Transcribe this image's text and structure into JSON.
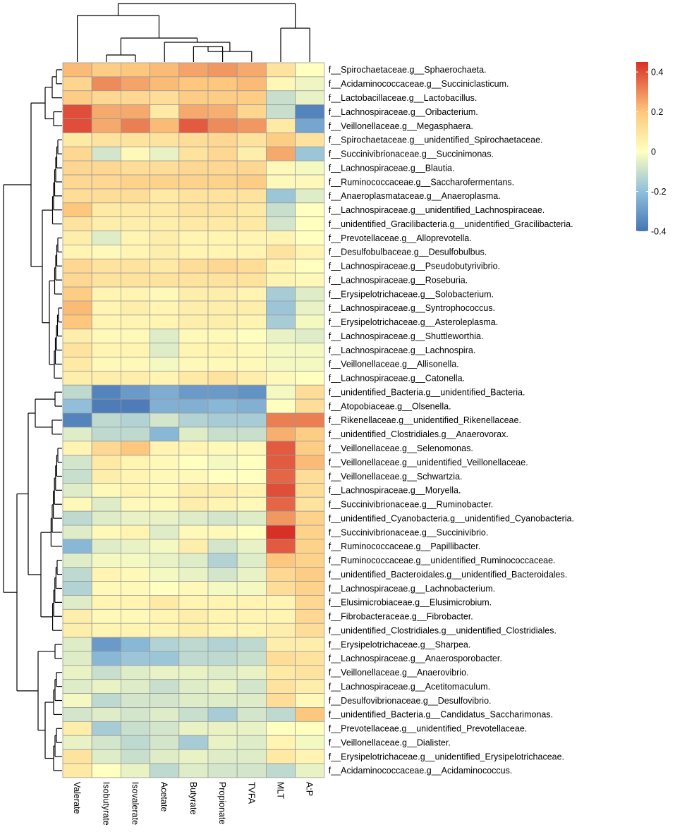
{
  "chart_data": {
    "type": "heatmap",
    "title": "",
    "color_scale": {
      "min": -0.4,
      "max": 0.45,
      "stops": [
        {
          "value": -0.4,
          "color": "#4575b4"
        },
        {
          "value": -0.2,
          "color": "#91bfdb"
        },
        {
          "value": 0,
          "color": "#ffffbf"
        },
        {
          "value": 0.2,
          "color": "#fdc77e"
        },
        {
          "value": 0.45,
          "color": "#d73027"
        }
      ],
      "legend_ticks": [
        {
          "value": 0.4,
          "label": "0.4"
        },
        {
          "value": 0.2,
          "label": "0.2"
        },
        {
          "value": 0,
          "label": "0"
        },
        {
          "value": -0.2,
          "label": "-0.2"
        },
        {
          "value": -0.4,
          "label": "-0.4"
        }
      ]
    },
    "columns": [
      "Valerate",
      "Isobutyrate",
      "Isovalerate",
      "Acetate",
      "Butyrate",
      "Propionate",
      "TVFA",
      "MLT",
      "A:P"
    ],
    "rows": [
      "f__Spirochaetaceae.g__Sphaerochaeta.",
      "f__Acidaminococcaceae.g__Succiniclasticum.",
      "f__Lactobacillaceae.g__Lactobacillus.",
      "f__Lachnospiraceae.g__Oribacterium.",
      "f__Veillonellaceae.g__Megasphaera.",
      "f__Spirochaetaceae.g__unidentified_Spirochaetaceae.",
      "f__Succinivibrionaceae.g__Succinimonas.",
      "f__Lachnospiraceae.g__Blautia.",
      "f__Ruminococcaceae.g__Saccharofermentans.",
      "f__Anaeroplasmataceae.g__Anaeroplasma.",
      "f__Lachnospiraceae.g__unidentified_Lachnospiraceae.",
      "f__unidentified_Gracilibacteria.g__unidentified_Gracilibacteria.",
      "f__Prevotellaceae.g__Alloprevotella.",
      "f__Desulfobulbaceae.g__Desulfobulbus.",
      "f__Lachnospiraceae.g__Pseudobutyrivibrio.",
      "f__Lachnospiraceae.g__Roseburia.",
      "f__Erysipelotrichaceae.g__Solobacterium.",
      "f__Lachnospiraceae.g__Syntrophococcus.",
      "f__Erysipelotrichaceae.g__Asteroleplasma.",
      "f__Lachnospiraceae.g__Shuttleworthia.",
      "f__Lachnospiraceae.g__Lachnospira.",
      "f__Veillonellaceae.g__Allisonella.",
      "f__Lachnospiraceae.g__Catonella.",
      "f__unidentified_Bacteria.g__unidentified_Bacteria.",
      "f__Atopobiaceae.g__Olsenella.",
      "f__Rikenellaceae.g__unidentified_Rikenellaceae.",
      "f__unidentified_Clostridiales.g__Anaerovorax.",
      "f__Veillonellaceae.g__Selenomonas.",
      "f__Veillonellaceae.g__unidentified_Veillonellaceae.",
      "f__Veillonellaceae.g__Schwartzia.",
      "f__Lachnospiraceae.g__Moryella.",
      "f__Succinivibrionaceae.g__Ruminobacter.",
      "f__unidentified_Cyanobacteria.g__unidentified_Cyanobacteria.",
      "f__Succinivibrionaceae.g__Succinivibrio.",
      "f__Ruminococcaceae.g__Papillibacter.",
      "f__Ruminococcaceae.g__unidentified_Ruminococcaceae.",
      "f__unidentified_Bacteroidales.g__unidentified_Bacteroidales.",
      "f__Lachnospiraceae.g__Lachnobacterium.",
      "f__Elusimicrobiaceae.g__Elusimicrobium.",
      "f__Fibrobacteraceae.g__Fibrobacter.",
      "f__unidentified_Clostridiales.g__unidentified_Clostridiales.",
      "f__Erysipelotrichaceae.g__Sharpea.",
      "f__Lachnospiraceae.g__Anaerosporobacter.",
      "f__Veillonellaceae.g__Anaerovibrio.",
      "f__Lachnospiraceae.g__Acetitomaculum.",
      "f__Desulfovibrionaceae.g__Desulfovibrio.",
      "f__unidentified_Bacteria.g__Candidatus_Saccharimonas.",
      "f__Prevotellaceae.g__unidentified_Prevotellaceae.",
      "f__Veillonellaceae.g__Dialister.",
      "f__Erysipelotrichaceae.g__unidentified_Erysipelotrichaceae.",
      "f__Acidaminococcaceae.g__Acidaminococcus."
    ],
    "values": [
      [
        0.22,
        0.18,
        0.2,
        0.22,
        0.26,
        0.28,
        0.25,
        0.1,
        0.0
      ],
      [
        0.15,
        0.3,
        0.26,
        0.22,
        0.2,
        0.2,
        0.22,
        0.03,
        -0.03
      ],
      [
        0.18,
        0.14,
        0.14,
        0.12,
        0.18,
        0.18,
        0.18,
        -0.1,
        -0.04
      ],
      [
        0.4,
        0.25,
        0.25,
        0.08,
        0.25,
        0.24,
        0.15,
        -0.1,
        -0.36
      ],
      [
        0.4,
        0.25,
        0.32,
        0.22,
        0.38,
        0.3,
        0.28,
        0.08,
        -0.27
      ],
      [
        0.08,
        0.1,
        0.1,
        0.1,
        0.12,
        0.14,
        0.1,
        0.18,
        0.1
      ],
      [
        0.14,
        -0.08,
        0.02,
        -0.04,
        0.1,
        0.14,
        0.06,
        0.25,
        -0.18
      ],
      [
        0.14,
        0.14,
        0.12,
        0.12,
        0.14,
        0.14,
        0.14,
        0.02,
        -0.02
      ],
      [
        0.14,
        0.14,
        0.16,
        0.16,
        0.16,
        0.16,
        0.18,
        0.02,
        0.02
      ],
      [
        0.12,
        0.12,
        0.12,
        0.08,
        0.1,
        0.1,
        0.1,
        -0.18,
        -0.06
      ],
      [
        0.2,
        0.08,
        0.08,
        0.08,
        0.1,
        0.1,
        0.08,
        -0.1,
        0.0
      ],
      [
        0.1,
        0.06,
        0.06,
        0.06,
        0.08,
        0.08,
        0.08,
        -0.08,
        0.0
      ],
      [
        0.06,
        -0.06,
        0.04,
        0.06,
        0.04,
        0.04,
        0.04,
        0.04,
        0.0
      ],
      [
        0.04,
        0.02,
        0.04,
        0.06,
        0.04,
        0.04,
        0.04,
        0.1,
        0.04
      ],
      [
        0.14,
        0.1,
        0.1,
        0.08,
        0.12,
        0.14,
        0.12,
        0.04,
        0.0
      ],
      [
        0.14,
        0.1,
        0.1,
        0.1,
        0.1,
        0.1,
        0.1,
        0.04,
        0.02
      ],
      [
        0.18,
        0.04,
        0.04,
        0.02,
        0.06,
        0.06,
        0.04,
        -0.16,
        -0.06
      ],
      [
        0.22,
        0.04,
        0.06,
        0.04,
        0.06,
        0.06,
        0.06,
        -0.18,
        -0.04
      ],
      [
        0.2,
        0.04,
        0.04,
        0.04,
        0.06,
        0.06,
        0.04,
        -0.16,
        -0.02
      ],
      [
        0.06,
        0.02,
        0.02,
        -0.06,
        0.02,
        0.02,
        0.0,
        -0.04,
        -0.06
      ],
      [
        0.1,
        0.04,
        0.04,
        -0.06,
        0.04,
        0.04,
        0.02,
        -0.02,
        -0.02
      ],
      [
        0.08,
        0.02,
        0.02,
        -0.02,
        0.02,
        0.02,
        0.02,
        -0.02,
        -0.02
      ],
      [
        0.06,
        0.06,
        0.06,
        0.04,
        0.08,
        0.1,
        0.06,
        0.02,
        0.0
      ],
      [
        -0.12,
        -0.36,
        -0.3,
        -0.25,
        -0.3,
        -0.3,
        -0.32,
        -0.02,
        0.12
      ],
      [
        -0.2,
        -0.38,
        -0.38,
        -0.24,
        -0.24,
        -0.22,
        -0.24,
        0.0,
        0.12
      ],
      [
        -0.36,
        -0.12,
        -0.14,
        -0.08,
        -0.14,
        -0.16,
        -0.16,
        0.32,
        0.32
      ],
      [
        -0.06,
        -0.12,
        -0.12,
        -0.22,
        -0.06,
        -0.1,
        -0.1,
        0.24,
        0.18
      ],
      [
        0.04,
        0.14,
        0.2,
        0.04,
        0.04,
        0.02,
        0.02,
        0.38,
        0.18
      ],
      [
        -0.08,
        0.08,
        0.04,
        0.02,
        0.0,
        -0.02,
        0.0,
        0.38,
        0.22
      ],
      [
        -0.1,
        0.06,
        0.04,
        0.02,
        0.02,
        0.0,
        0.0,
        0.36,
        0.12
      ],
      [
        -0.06,
        0.02,
        0.04,
        0.02,
        0.06,
        0.06,
        0.04,
        0.4,
        0.12
      ],
      [
        0.02,
        -0.06,
        0.02,
        0.02,
        0.06,
        0.04,
        0.02,
        0.36,
        0.1
      ],
      [
        -0.12,
        -0.06,
        -0.04,
        -0.04,
        -0.06,
        -0.08,
        -0.06,
        0.28,
        0.16
      ],
      [
        -0.06,
        0.02,
        0.04,
        -0.06,
        0.02,
        0.02,
        0.0,
        0.45,
        0.16
      ],
      [
        -0.22,
        -0.06,
        -0.04,
        -0.02,
        0.06,
        -0.08,
        -0.04,
        0.38,
        0.16
      ],
      [
        -0.06,
        -0.02,
        -0.02,
        -0.04,
        -0.06,
        -0.14,
        -0.06,
        0.2,
        0.16
      ],
      [
        -0.12,
        0.04,
        0.02,
        -0.02,
        -0.04,
        -0.08,
        -0.04,
        0.14,
        0.18
      ],
      [
        -0.14,
        0.02,
        0.02,
        0.0,
        0.02,
        -0.02,
        -0.02,
        0.12,
        0.16
      ],
      [
        -0.06,
        0.04,
        0.04,
        0.08,
        0.04,
        0.04,
        0.04,
        0.04,
        0.14
      ],
      [
        0.06,
        0.02,
        0.02,
        0.04,
        0.06,
        0.04,
        0.04,
        0.04,
        0.14
      ],
      [
        0.06,
        0.04,
        0.04,
        0.04,
        0.06,
        0.04,
        0.04,
        0.06,
        0.12
      ],
      [
        -0.06,
        -0.3,
        -0.22,
        -0.14,
        -0.12,
        -0.14,
        -0.12,
        0.06,
        0.06
      ],
      [
        -0.06,
        -0.22,
        -0.18,
        -0.18,
        -0.12,
        -0.12,
        -0.1,
        0.12,
        0.1
      ],
      [
        -0.04,
        -0.1,
        -0.06,
        -0.04,
        -0.04,
        -0.06,
        -0.04,
        0.08,
        0.1
      ],
      [
        -0.06,
        -0.04,
        -0.06,
        -0.1,
        -0.06,
        -0.04,
        -0.08,
        0.1,
        0.06
      ],
      [
        -0.02,
        -0.12,
        -0.08,
        -0.08,
        -0.06,
        -0.06,
        -0.06,
        0.12,
        0.02
      ],
      [
        -0.08,
        -0.06,
        -0.08,
        -0.06,
        -0.1,
        -0.16,
        -0.08,
        -0.12,
        0.2
      ],
      [
        0.06,
        -0.16,
        -0.1,
        -0.08,
        -0.04,
        -0.04,
        -0.04,
        0.0,
        0.0
      ],
      [
        -0.04,
        -0.08,
        -0.12,
        -0.08,
        -0.16,
        -0.04,
        -0.06,
        0.04,
        -0.02
      ],
      [
        0.1,
        -0.06,
        -0.1,
        -0.06,
        -0.04,
        -0.06,
        -0.06,
        0.08,
        0.04
      ],
      [
        0.08,
        0.0,
        -0.04,
        -0.12,
        -0.06,
        -0.08,
        -0.08,
        -0.12,
        -0.04
      ]
    ]
  }
}
